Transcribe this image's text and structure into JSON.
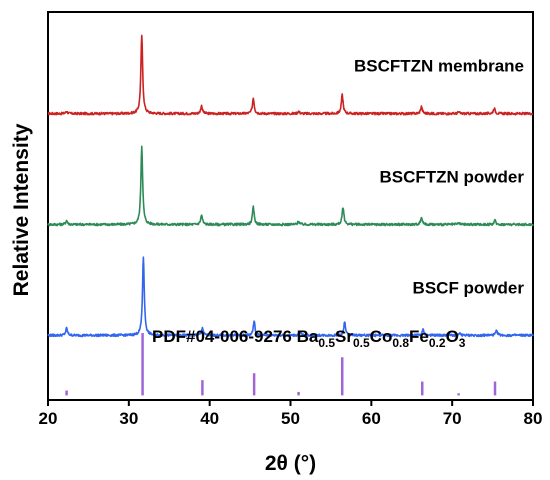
{
  "chart_data": {
    "type": "line",
    "title": "",
    "xlabel": "2θ (°)",
    "ylabel": "Relative Intensity",
    "xlim": [
      20,
      80
    ],
    "xticks": [
      "20",
      "30",
      "40",
      "50",
      "60",
      "70",
      "80"
    ],
    "grid": false,
    "series": [
      {
        "name": "BSCFTZN membrane",
        "color": "#cc2222",
        "offset": 3.1,
        "peaks": [
          [
            22.3,
            0.03
          ],
          [
            31.6,
            1.0
          ],
          [
            39.0,
            0.1
          ],
          [
            45.4,
            0.2
          ],
          [
            51.0,
            0.03
          ],
          [
            56.4,
            0.24
          ],
          [
            66.2,
            0.09
          ],
          [
            70.8,
            0.02
          ],
          [
            75.2,
            0.07
          ]
        ]
      },
      {
        "name": "BSCFTZN powder",
        "color": "#2e8b57",
        "offset": 1.9,
        "peaks": [
          [
            22.3,
            0.05
          ],
          [
            31.6,
            1.0
          ],
          [
            39.0,
            0.12
          ],
          [
            45.4,
            0.22
          ],
          [
            51.0,
            0.04
          ],
          [
            56.5,
            0.22
          ],
          [
            66.2,
            0.09
          ],
          [
            70.8,
            0.02
          ],
          [
            75.3,
            0.05
          ]
        ]
      },
      {
        "name": "BSCF powder",
        "color": "#3366ee",
        "offset": 0.7,
        "peaks": [
          [
            22.3,
            0.09
          ],
          [
            31.8,
            1.0
          ],
          [
            39.1,
            0.1
          ],
          [
            45.5,
            0.18
          ],
          [
            51.2,
            0.04
          ],
          [
            56.7,
            0.17
          ],
          [
            66.4,
            0.07
          ],
          [
            71.0,
            0.02
          ],
          [
            75.5,
            0.06
          ]
        ]
      }
    ],
    "reference": {
      "label_main": "PDF#04-006-9276 Ba",
      "label_parts": [
        [
          "0.5",
          "sub"
        ],
        [
          "Sr",
          "n"
        ],
        [
          "0.5",
          "sub"
        ],
        [
          "Co",
          "n"
        ],
        [
          "0.8",
          "sub"
        ],
        [
          "Fe",
          "n"
        ],
        [
          "0.2",
          "sub"
        ],
        [
          "O",
          "n"
        ],
        [
          "3",
          "sub"
        ]
      ],
      "color": "#a066d8",
      "lines": [
        [
          22.3,
          0.07
        ],
        [
          31.7,
          0.9
        ],
        [
          39.1,
          0.22
        ],
        [
          45.5,
          0.32
        ],
        [
          51.0,
          0.05
        ],
        [
          56.4,
          0.55
        ],
        [
          66.3,
          0.2
        ],
        [
          70.8,
          0.03
        ],
        [
          75.3,
          0.2
        ]
      ]
    }
  }
}
